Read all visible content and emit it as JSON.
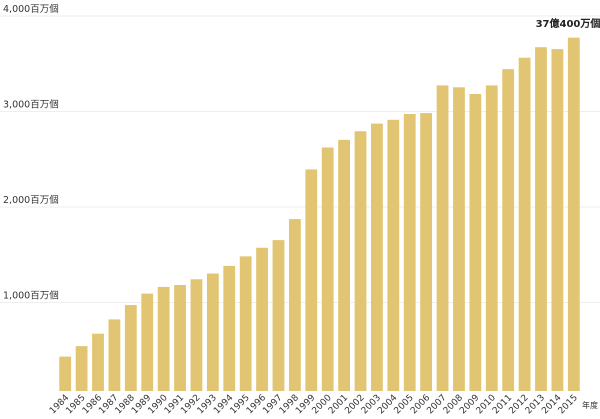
{
  "chart_data": {
    "type": "bar",
    "title": "",
    "xlabel": "年度",
    "ylabel": "",
    "ylim": [
      0,
      4000
    ],
    "grid": true,
    "legend": "none",
    "bar_color": "#e2c572",
    "grid_color": "#eeeeee",
    "ytick_labels": [
      "1,000百万個",
      "2,000百万個",
      "3,000百万個",
      "4,000百万個"
    ],
    "ytick_values": [
      1000,
      2000,
      3000,
      4000
    ],
    "categories": [
      "1984",
      "1985",
      "1986",
      "1987",
      "1988",
      "1989",
      "1990",
      "1991",
      "1992",
      "1993",
      "1994",
      "1995",
      "1996",
      "1997",
      "1998",
      "1999",
      "2000",
      "2001",
      "2002",
      "2003",
      "2004",
      "2005",
      "2006",
      "2007",
      "2008",
      "2009",
      "2010",
      "2011",
      "2012",
      "2013",
      "2014",
      "2015"
    ],
    "values": [
      360,
      470,
      600,
      750,
      900,
      1020,
      1090,
      1110,
      1170,
      1230,
      1310,
      1410,
      1500,
      1580,
      1800,
      2320,
      2550,
      2630,
      2720,
      2800,
      2840,
      2900,
      2910,
      3200,
      3180,
      3110,
      3200,
      3370,
      3490,
      3600,
      3580,
      3700
    ],
    "annotation": "37億400万個"
  }
}
